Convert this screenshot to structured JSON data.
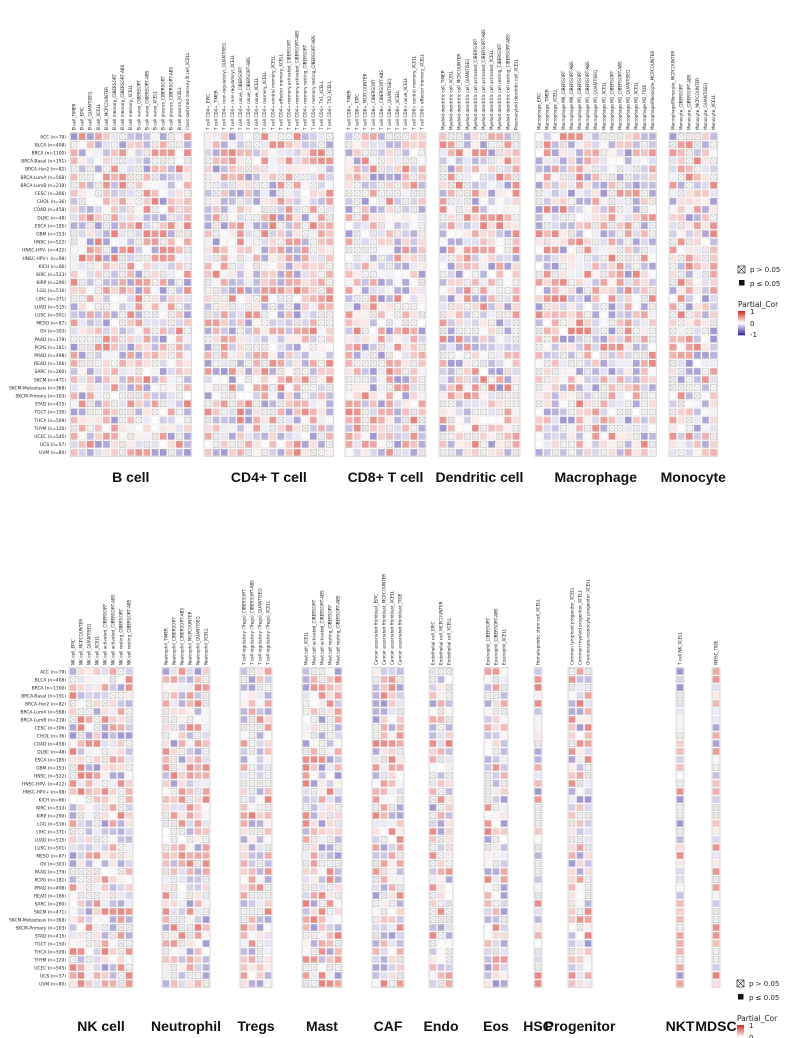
{
  "chart_data": {
    "type": "heatmap",
    "value_scale": {
      "min": -1,
      "max": 1,
      "low_color": "#3b2a9e",
      "mid_color": "#ffffff",
      "high_color": "#d73027"
    },
    "rows": [
      "ACC (n=79)",
      "BLCA (n=408)",
      "BRCA (n=1100)",
      "BRCA-Basal (n=191)",
      "BRCA-Her2 (n=82)",
      "BRCA-LumA (n=568)",
      "BRCA-LumB (n=219)",
      "CESC (n=306)",
      "CHOL (n=36)",
      "COAD (n=458)",
      "DLBC (n=48)",
      "ESCA (n=185)",
      "GBM (n=153)",
      "HNSC (n=522)",
      "HNSC-HPV- (n=422)",
      "HNSC-HPV+ (n=98)",
      "KICH (n=66)",
      "KIRC (n=533)",
      "KIRP (n=290)",
      "LGG (n=516)",
      "LIHC (n=371)",
      "LUAD (n=515)",
      "LUSC (n=501)",
      "MESO (n=87)",
      "OV (n=303)",
      "PAAD (n=179)",
      "PCPG (n=181)",
      "PRAD (n=498)",
      "READ (n=166)",
      "SARC (n=260)",
      "SKCM (n=471)",
      "SKCM-Metastasis (n=368)",
      "SKCM-Primary (n=103)",
      "STAD (n=415)",
      "TGCT (n=150)",
      "THCA (n=509)",
      "THYM (n=120)",
      "UCEC (n=545)",
      "UCS (n=57)",
      "UVM (n=80)"
    ],
    "legend": {
      "title": "Partial_Cor",
      "ticks": [
        "1",
        "0",
        "-1"
      ],
      "ns_label": "p > 0.05",
      "sig_label": "p ≤ 0.05"
    },
    "panels": [
      {
        "groups": [
          {
            "label": "B cell",
            "columns": [
              "B cell_TIMER",
              "B cell_EPIC",
              "B cell_QUANTISEQ",
              "B cell_XCELL",
              "B cell_MCPCOUNTER",
              "B cell memory_CIBERSORT",
              "B cell memory_CIBERSORT-ABS",
              "B cell memory_XCELL",
              "B cell naive_CIBERSORT",
              "B cell naive_CIBERSORT-ABS",
              "B cell naive_XCELL",
              "B cell plasma_CIBERSORT",
              "B cell plasma_CIBERSORT-ABS",
              "B cell plasma_XCELL",
              "Class-switched memory B cell_XCELL"
            ]
          },
          {
            "label": "CD4+ T cell",
            "columns": [
              "T cell CD4+_EPIC",
              "T cell CD4+_TIMER",
              "T cell CD4+ (non-regulatory)_QUANTISEQ",
              "T cell CD4+ (non-regulatory)_XCELL",
              "T cell CD4+ naive_CIBERSORT",
              "T cell CD4+ naive_CIBERSORT-ABS",
              "T cell CD4+ naive_XCELL",
              "T cell CD4+ memory_XCELL",
              "T cell CD4+ central memory_XCELL",
              "T cell CD4+ effector memory_XCELL",
              "T cell CD4+ memory activated_CIBERSORT",
              "T cell CD4+ memory activated_CIBERSORT-ABS",
              "T cell CD4+ memory resting_CIBERSORT",
              "T cell CD4+ memory resting_CIBERSORT-ABS",
              "T cell CD4+ Th1_XCELL",
              "T cell CD4+ Th2_XCELL"
            ]
          },
          {
            "label": "CD8+ T cell",
            "columns": [
              "T cell CD8+_TIMER",
              "T cell CD8+_EPIC",
              "T cell CD8+_MCPCOUNTER",
              "T cell CD8+_CIBERSORT",
              "T cell CD8+_CIBERSORT-ABS",
              "T cell CD8+_QUANTISEQ",
              "T cell CD8+_XCELL",
              "T cell CD8+ naive_XCELL",
              "T cell CD8+ central memory_XCELL",
              "T cell CD8+ effector memory_XCELL"
            ]
          },
          {
            "label": "Dendritic cell",
            "columns": [
              "Myeloid dendritic cell_TIMER",
              "Myeloid dendritic cell_XCELL",
              "Myeloid dendritic cell_MCPCOUNTER",
              "Myeloid dendritic cell_QUANTISEQ",
              "Myeloid dendritic cell activated_CIBERSORT",
              "Myeloid dendritic cell activated_CIBERSORT-ABS",
              "Myeloid dendritic cell activated_XCELL",
              "Myeloid dendritic cell resting_CIBERSORT",
              "Myeloid dendritic cell resting_CIBERSORT-ABS",
              "Plasmacytoid dendritic cell_XCELL"
            ]
          },
          {
            "label": "Macrophage",
            "columns": [
              "Macrophage_EPIC",
              "Macrophage_TIMER",
              "Macrophage_XCELL",
              "Macrophage M0_CIBERSORT",
              "Macrophage M0_CIBERSORT-ABS",
              "Macrophage M1_CIBERSORT",
              "Macrophage M1_CIBERSORT-ABS",
              "Macrophage M1_QUANTISEQ",
              "Macrophage M1_XCELL",
              "Macrophage M2_CIBERSORT",
              "Macrophage M2_CIBERSORT-ABS",
              "Macrophage M2_QUANTISEQ",
              "Macrophage M2_XCELL",
              "Macrophage M2_TIDE",
              "Macrophage/Monocyte_MCPCOUNTER"
            ]
          },
          {
            "label": "Monocyte",
            "columns": [
              "Macrophage/Monocyte_MCPCOUNTER",
              "Monocyte_CIBERSORT",
              "Monocyte_CIBERSORT-ABS",
              "Monocyte_MCPCOUNTER",
              "Monocyte_QUANTISEQ",
              "Monocyte_XCELL"
            ]
          }
        ]
      },
      {
        "groups": [
          {
            "label": "NK cell",
            "columns": [
              "NK cell_EPIC",
              "NK cell_MCPCOUNTER",
              "NK cell_QUANTISEQ",
              "NK cell_XCELL",
              "NK cell activated_CIBERSORT",
              "NK cell activated_CIBERSORT-ABS",
              "NK cell resting_CIBERSORT",
              "NK cell resting_CIBERSORT-ABS"
            ]
          },
          {
            "label": "Neutrophil",
            "columns": [
              "Neutrophil_TIMER",
              "Neutrophil_CIBERSORT",
              "Neutrophil_CIBERSORT-ABS",
              "Neutrophil_MCPCOUNTER",
              "Neutrophil_QUANTISEQ",
              "Neutrophil_XCELL"
            ]
          },
          {
            "label": "Tregs",
            "columns": [
              "T cell regulatory (Tregs)_CIBERSORT",
              "T cell regulatory (Tregs)_CIBERSORT-ABS",
              "T cell regulatory (Tregs)_QUANTISEQ",
              "T cell regulatory (Tregs)_XCELL"
            ]
          },
          {
            "label": "Mast",
            "columns": [
              "Mast cell_XCELL",
              "Mast cell activated_CIBERSORT",
              "Mast cell activated_CIBERSORT-ABS",
              "Mast cell resting_CIBERSORT",
              "Mast cell resting_CIBERSORT-ABS"
            ]
          },
          {
            "label": "CAF",
            "columns": [
              "Cancer associated fibroblast_EPIC",
              "Cancer associated fibroblast_MCPCOUNTER",
              "Cancer associated fibroblast_XCELL",
              "Cancer associated fibroblast_TIDE"
            ]
          },
          {
            "label": "Endo",
            "columns": [
              "Endothelial cell_EPIC",
              "Endothelial cell_MCPCOUNTER",
              "Endothelial cell_XCELL"
            ]
          },
          {
            "label": "Eos",
            "columns": [
              "Eosinophil_CIBERSORT",
              "Eosinophil_CIBERSORT-ABS",
              "Eosinophil_XCELL"
            ]
          },
          {
            "label": "HSC",
            "columns": [
              "Hematopoietic stem cell_XCELL"
            ]
          },
          {
            "label": "Progenitor",
            "columns": [
              "Common lymphoid progenitor_XCELL",
              "Common myeloid progenitor_XCELL",
              "Granulocyte-monocyte progenitor_XCELL"
            ]
          },
          {
            "label": "NKT",
            "columns": [
              "T cell NK_XCELL"
            ]
          },
          {
            "label": "MDSC",
            "columns": [
              "MDSC_TIDE"
            ]
          }
        ]
      }
    ]
  }
}
